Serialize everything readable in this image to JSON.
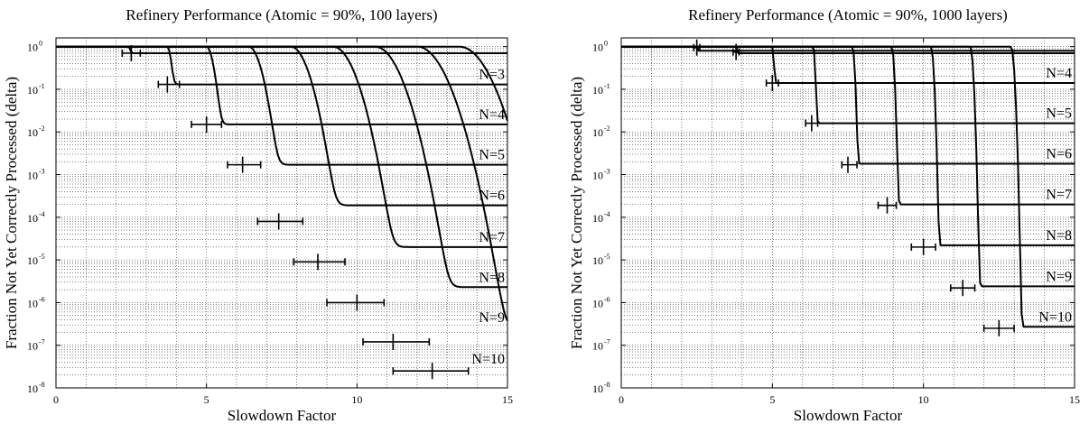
{
  "chart_data": [
    {
      "type": "line",
      "title": "Refinery Performance (Atomic = 90%, 100 layers)",
      "xlabel": "Slowdown Factor",
      "ylabel": "Fraction Not Yet Correctly Processed (delta)",
      "xlim": [
        0,
        15
      ],
      "ylim": [
        1e-08,
        1.6
      ],
      "yscale": "log",
      "grid": true,
      "x_ticks": [
        "0",
        "5",
        "10",
        "15"
      ],
      "y_ticks": [
        {
          "base": "10",
          "exp": "0"
        },
        {
          "base": "10",
          "exp": "-1"
        },
        {
          "base": "10",
          "exp": "-2"
        },
        {
          "base": "10",
          "exp": "-3"
        },
        {
          "base": "10",
          "exp": "-4"
        },
        {
          "base": "10",
          "exp": "-5"
        },
        {
          "base": "10",
          "exp": "-6"
        },
        {
          "base": "10",
          "exp": "-7"
        },
        {
          "base": "10",
          "exp": "-8"
        }
      ],
      "series": [
        {
          "x0": 2.4,
          "step": 0.15,
          "floor": 0.7
        },
        {
          "x0": 3.7,
          "step": 0.25,
          "floor": 0.13,
          "label": "N=3"
        },
        {
          "x0": 5.0,
          "step": 0.45,
          "floor": 0.015,
          "label": "N=4"
        },
        {
          "x0": 6.4,
          "step": 0.75,
          "floor": 0.0017,
          "label": "N=5"
        },
        {
          "x0": 7.8,
          "step": 1.0,
          "floor": 0.00019,
          "label": "N=6"
        },
        {
          "x0": 9.2,
          "step": 1.2,
          "floor": 2e-05,
          "label": "N=7"
        },
        {
          "x0": 10.6,
          "step": 1.35,
          "floor": 2.3e-06,
          "label": "N=8"
        },
        {
          "x0": 12.0,
          "step": 1.5,
          "floor": 2.6e-07,
          "label": "N=9"
        },
        {
          "x0": 13.4,
          "step": 1.6,
          "floor": 2.8e-08,
          "label": "N=10"
        }
      ],
      "error_bars": [
        {
          "x": 2.5,
          "y": 0.7,
          "xmin": 2.2,
          "xmax": 2.8
        },
        {
          "x": 3.7,
          "y": 0.13,
          "xmin": 3.4,
          "xmax": 4.1
        },
        {
          "x": 5.0,
          "y": 0.015,
          "xmin": 4.5,
          "xmax": 5.5
        },
        {
          "x": 6.2,
          "y": 0.0017,
          "xmin": 5.7,
          "xmax": 6.8
        },
        {
          "x": 7.4,
          "y": 8e-05,
          "xmin": 6.7,
          "xmax": 8.2
        },
        {
          "x": 8.7,
          "y": 9e-06,
          "xmin": 7.9,
          "xmax": 9.6
        },
        {
          "x": 10.0,
          "y": 1e-06,
          "xmin": 9.0,
          "xmax": 10.9
        },
        {
          "x": 11.2,
          "y": 1.2e-07,
          "xmin": 10.2,
          "xmax": 12.4
        },
        {
          "x": 12.5,
          "y": 2.5e-08,
          "xmin": 11.2,
          "xmax": 13.7
        }
      ]
    },
    {
      "type": "line",
      "title": "Refinery Performance (Atomic = 90%, 1000 layers)",
      "xlabel": "Slowdown Factor",
      "ylabel": "Fraction Not Yet Correctly Processed (delta)",
      "xlim": [
        0,
        15
      ],
      "ylim": [
        1e-08,
        1.6
      ],
      "yscale": "log",
      "grid": true,
      "x_ticks": [
        "0",
        "5",
        "10",
        "15"
      ],
      "y_ticks": [
        {
          "base": "10",
          "exp": "0"
        },
        {
          "base": "10",
          "exp": "-1"
        },
        {
          "base": "10",
          "exp": "-2"
        },
        {
          "base": "10",
          "exp": "-3"
        },
        {
          "base": "10",
          "exp": "-4"
        },
        {
          "base": "10",
          "exp": "-5"
        },
        {
          "base": "10",
          "exp": "-6"
        },
        {
          "base": "10",
          "exp": "-7"
        },
        {
          "base": "10",
          "exp": "-8"
        }
      ],
      "series": [
        {
          "x0": 2.5,
          "step": 0.05,
          "floor": 0.8
        },
        {
          "x0": 3.8,
          "step": 0.05,
          "floor": 0.7
        },
        {
          "x0": 5.0,
          "step": 0.1,
          "floor": 0.14,
          "label": "N=4"
        },
        {
          "x0": 6.35,
          "step": 0.12,
          "floor": 0.016,
          "label": "N=5"
        },
        {
          "x0": 7.65,
          "step": 0.14,
          "floor": 0.0018,
          "label": "N=6"
        },
        {
          "x0": 8.95,
          "step": 0.15,
          "floor": 0.0002,
          "label": "N=7"
        },
        {
          "x0": 10.25,
          "step": 0.16,
          "floor": 2.2e-05,
          "label": "N=8"
        },
        {
          "x0": 11.55,
          "step": 0.17,
          "floor": 2.4e-06,
          "label": "N=9"
        },
        {
          "x0": 12.9,
          "step": 0.18,
          "floor": 2.7e-07,
          "label": "N=10"
        }
      ],
      "error_bars": [
        {
          "x": 2.5,
          "y": 0.95,
          "xmin": 2.4,
          "xmax": 2.6
        },
        {
          "x": 3.8,
          "y": 0.75,
          "xmin": 3.7,
          "xmax": 3.9
        },
        {
          "x": 5.0,
          "y": 0.14,
          "xmin": 4.8,
          "xmax": 5.2
        },
        {
          "x": 6.3,
          "y": 0.016,
          "xmin": 6.1,
          "xmax": 6.5
        },
        {
          "x": 7.5,
          "y": 0.0017,
          "xmin": 7.3,
          "xmax": 7.8
        },
        {
          "x": 8.8,
          "y": 0.00019,
          "xmin": 8.5,
          "xmax": 9.1
        },
        {
          "x": 10.0,
          "y": 2e-05,
          "xmin": 9.6,
          "xmax": 10.4
        },
        {
          "x": 11.3,
          "y": 2.2e-06,
          "xmin": 10.9,
          "xmax": 11.7
        },
        {
          "x": 12.5,
          "y": 2.5e-07,
          "xmin": 12.0,
          "xmax": 13.0
        }
      ]
    }
  ]
}
